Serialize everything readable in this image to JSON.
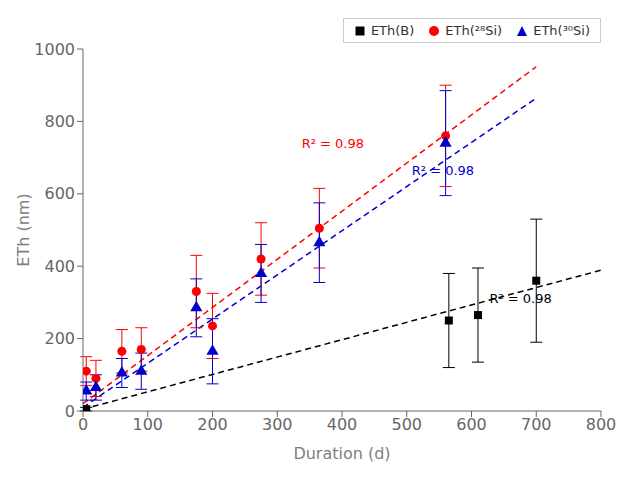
{
  "chart_data": {
    "type": "scatter",
    "xlabel": "Duration (d)",
    "ylabel": "ETh (nm)",
    "xlim": [
      0,
      800
    ],
    "ylim": [
      0,
      1000
    ],
    "xticks": [
      0,
      100,
      200,
      300,
      400,
      500,
      600,
      700,
      800
    ],
    "yticks": [
      0,
      200,
      400,
      600,
      800,
      1000
    ],
    "grid": false,
    "legend": "upper right",
    "series": [
      {
        "name": "ETh(B)",
        "color": "#000000",
        "marker": "square",
        "x": [
          5,
          565,
          610,
          700
        ],
        "values": [
          5,
          250,
          265,
          360
        ],
        "errors": [
          5,
          130,
          130,
          170
        ],
        "fit": {
          "line_style": "dashed",
          "x": [
            0,
            800
          ],
          "values": [
            5,
            389
          ]
        }
      },
      {
        "name": "ETh(²⁸Si)",
        "color": "#ff0000",
        "marker": "circle",
        "x": [
          5,
          20,
          60,
          90,
          175,
          200,
          275,
          365,
          560
        ],
        "values": [
          110,
          90,
          165,
          170,
          330,
          235,
          420,
          505,
          760
        ],
        "errors": [
          40,
          50,
          60,
          60,
          100,
          90,
          100,
          110,
          140
        ],
        "fit": {
          "line_style": "dashed",
          "x": [
            0,
            700
          ],
          "values": [
            20,
            951
          ]
        }
      },
      {
        "name": "ETh(³⁰Si)",
        "color": "#0000cd",
        "marker": "triangle",
        "x": [
          5,
          20,
          60,
          90,
          175,
          200,
          275,
          365,
          560
        ],
        "values": [
          55,
          65,
          105,
          110,
          285,
          165,
          380,
          465,
          740
        ],
        "errors": [
          25,
          35,
          40,
          50,
          80,
          90,
          80,
          110,
          145
        ],
        "fit": {
          "line_style": "dashed",
          "x": [
            0,
            700
          ],
          "values": [
            10,
            864
          ]
        }
      }
    ],
    "annotations": [
      {
        "text": "R² = 0.98",
        "x": 620,
        "y": 310,
        "color": "#000000"
      },
      {
        "text": "R² = 0.98",
        "x": 330,
        "y": 740,
        "color": "#ff0000"
      },
      {
        "text": "R² = 0.98",
        "x": 500,
        "y": 665,
        "color": "#0000cd"
      }
    ]
  }
}
